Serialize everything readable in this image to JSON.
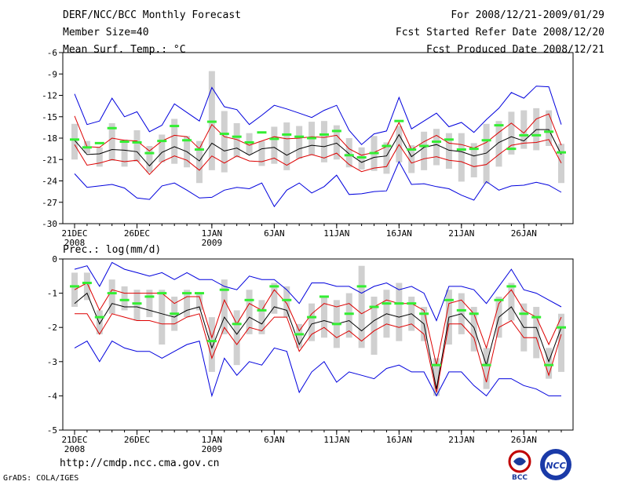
{
  "header": {
    "title": "DERF/NCC/BCC Monthly Forecast",
    "member": "Member Size=40",
    "var1": "Mean Surf. Temp.: °C",
    "period": "For 2008/12/21-2009/01/29",
    "refer": "Fcst Started Refer Date 2008/12/20",
    "produced": "Fcst Produced Date 2008/12/21"
  },
  "footer": {
    "url": "http://cmdp.ncc.cma.gov.cn",
    "credit": "GrADS: COLA/IGES",
    "logo_bcc": "BCC",
    "logo_ncc": "NCC"
  },
  "colors": {
    "envelope": "#0000dd",
    "quartile": "#dd0000",
    "mean": "#000000",
    "box": "#d0d0d0",
    "marker": "#33ee33"
  },
  "chart_data": [
    {
      "type": "line",
      "title": "Mean Surf. Temp.: °C",
      "ylim": [
        -30,
        -6
      ],
      "yticks": [
        -6,
        -9,
        -12,
        -15,
        -18,
        -21,
        -24,
        -27,
        -30
      ],
      "x_labels": [
        {
          "day": 0,
          "l1": "21DEC",
          "l2": "2008"
        },
        {
          "day": 5,
          "l1": "26DEC",
          "l2": ""
        },
        {
          "day": 11,
          "l1": "1JAN",
          "l2": "2009"
        },
        {
          "day": 16,
          "l1": "6JAN",
          "l2": ""
        },
        {
          "day": 21,
          "l1": "11JAN",
          "l2": ""
        },
        {
          "day": 26,
          "l1": "16JAN",
          "l2": ""
        },
        {
          "day": 31,
          "l1": "21JAN",
          "l2": ""
        },
        {
          "day": 36,
          "l1": "26JAN",
          "l2": ""
        }
      ],
      "series": [
        {
          "name": "max",
          "values": [
            -11.8,
            -16.1,
            -15.6,
            -12.4,
            -15.0,
            -14.3,
            -17.1,
            -16.2,
            -13.2,
            -14.4,
            -15.6,
            -10.9,
            -13.6,
            -14.0,
            -16.1,
            -14.8,
            -13.4,
            -13.9,
            -14.5,
            -15.1,
            -14.1,
            -13.4,
            -16.9,
            -18.9,
            -17.4,
            -17.0,
            -12.3,
            -16.7,
            -15.6,
            -14.5,
            -16.4,
            -15.8,
            -17.2,
            -15.4,
            -13.8,
            -11.6,
            -12.4,
            -10.7,
            -10.8,
            -16.1
          ]
        },
        {
          "name": "q3",
          "values": [
            -14.9,
            -19.2,
            -19.3,
            -18.0,
            -18.3,
            -18.4,
            -19.8,
            -18.4,
            -17.6,
            -17.8,
            -19.5,
            -16.1,
            -17.8,
            -18.2,
            -19.0,
            -18.4,
            -17.8,
            -18.1,
            -18.0,
            -17.8,
            -17.9,
            -17.6,
            -19.5,
            -20.4,
            -20.0,
            -19.2,
            -15.8,
            -19.6,
            -18.5,
            -17.6,
            -18.7,
            -18.9,
            -19.4,
            -18.6,
            -17.2,
            -15.9,
            -17.3,
            -15.3,
            -14.6,
            -19.0
          ]
        },
        {
          "name": "mean",
          "values": [
            -18.3,
            -20.3,
            -20.2,
            -19.6,
            -19.7,
            -19.9,
            -21.9,
            -20.0,
            -19.2,
            -19.9,
            -21.2,
            -18.7,
            -19.8,
            -19.4,
            -20.4,
            -19.5,
            -19.3,
            -20.4,
            -19.5,
            -19.0,
            -19.2,
            -18.7,
            -20.2,
            -21.4,
            -20.7,
            -20.5,
            -17.5,
            -20.6,
            -19.3,
            -18.9,
            -19.7,
            -19.9,
            -20.5,
            -20.1,
            -18.6,
            -17.8,
            -18.4,
            -16.8,
            -16.8,
            -20.3
          ]
        },
        {
          "name": "q1",
          "values": [
            -18.9,
            -21.8,
            -21.5,
            -21.0,
            -21.3,
            -21.1,
            -23.1,
            -21.3,
            -20.5,
            -21.1,
            -22.5,
            -20.5,
            -21.5,
            -20.5,
            -21.2,
            -21.3,
            -20.8,
            -21.8,
            -20.8,
            -20.3,
            -20.8,
            -20.1,
            -21.7,
            -22.7,
            -22.2,
            -22.0,
            -18.9,
            -21.5,
            -20.9,
            -20.6,
            -21.1,
            -21.3,
            -22.0,
            -21.7,
            -20.3,
            -19.0,
            -18.7,
            -18.6,
            -18.2,
            -21.5
          ]
        },
        {
          "name": "min",
          "values": [
            -23.0,
            -24.9,
            -24.7,
            -24.5,
            -25.0,
            -26.4,
            -26.6,
            -24.7,
            -24.3,
            -25.3,
            -26.4,
            -26.3,
            -25.3,
            -24.9,
            -25.1,
            -24.3,
            -27.6,
            -25.3,
            -24.3,
            -25.7,
            -24.8,
            -23.2,
            -25.9,
            -25.8,
            -25.5,
            -25.4,
            -21.3,
            -24.5,
            -24.4,
            -24.8,
            -25.1,
            -26.0,
            -26.7,
            -24.1,
            -25.3,
            -24.7,
            -24.6,
            -24.2,
            -24.6,
            -25.6
          ]
        },
        {
          "name": "box_top",
          "values": [
            -16.0,
            -18.4,
            -19.3,
            -15.9,
            -18.2,
            -16.9,
            -19.1,
            -17.5,
            -15.3,
            -17.7,
            -18.4,
            -8.6,
            -14.2,
            -15.9,
            -17.3,
            -18.4,
            -16.4,
            -15.8,
            -16.3,
            -15.7,
            -15.6,
            -16.2,
            -18.0,
            -19.3,
            -17.7,
            -18.6,
            -16.3,
            -19.0,
            -17.1,
            -16.7,
            -17.3,
            -17.3,
            -18.7,
            -16.0,
            -15.6,
            -14.3,
            -14.1,
            -13.8,
            -14.1,
            -18.8
          ]
        },
        {
          "name": "box_bottom",
          "values": [
            -21.0,
            -20.1,
            -22.0,
            -21.2,
            -22.0,
            -21.3,
            -22.8,
            -21.4,
            -21.6,
            -22.1,
            -24.3,
            -22.5,
            -22.8,
            -20.7,
            -20.3,
            -21.9,
            -21.6,
            -22.5,
            -20.9,
            -20.4,
            -21.4,
            -21.0,
            -22.1,
            -22.4,
            -22.6,
            -23.0,
            -21.4,
            -22.9,
            -22.5,
            -21.8,
            -22.3,
            -24.1,
            -23.5,
            -24.4,
            -22.0,
            -20.3,
            -19.5,
            -19.7,
            -19.1,
            -24.3
          ]
        },
        {
          "name": "marker",
          "values": [
            -18.2,
            -19.3,
            -18.7,
            -16.6,
            -18.5,
            -18.6,
            -20.1,
            -18.4,
            -16.3,
            -18.3,
            -19.6,
            -15.7,
            -17.4,
            -17.8,
            -18.6,
            -17.2,
            -18.1,
            -17.5,
            -17.8,
            -18.0,
            -17.5,
            -17.0,
            -20.4,
            -20.7,
            -20.1,
            -19.1,
            -15.6,
            -19.6,
            -19.1,
            -18.5,
            -18.2,
            -19.6,
            -19.5,
            -18.3,
            -16.2,
            -19.5,
            -17.6,
            -17.6,
            -17.1,
            -20.0
          ]
        }
      ]
    },
    {
      "type": "line",
      "title": "Prec.: log(mm/d)",
      "ylim": [
        -5,
        0
      ],
      "yticks": [
        0,
        -1,
        -2,
        -3,
        -4,
        -5
      ],
      "x_labels": [
        {
          "day": 0,
          "l1": "21DEC",
          "l2": "2008"
        },
        {
          "day": 5,
          "l1": "26DEC",
          "l2": ""
        },
        {
          "day": 11,
          "l1": "1JAN",
          "l2": "2009"
        },
        {
          "day": 16,
          "l1": "6JAN",
          "l2": ""
        },
        {
          "day": 21,
          "l1": "11JAN",
          "l2": ""
        },
        {
          "day": 26,
          "l1": "16JAN",
          "l2": ""
        },
        {
          "day": 31,
          "l1": "21JAN",
          "l2": ""
        },
        {
          "day": 36,
          "l1": "26JAN",
          "l2": ""
        }
      ],
      "series": [
        {
          "name": "max",
          "values": [
            -0.3,
            -0.2,
            -0.8,
            -0.1,
            -0.3,
            -0.4,
            -0.5,
            -0.4,
            -0.6,
            -0.4,
            -0.6,
            -0.6,
            -0.8,
            -0.9,
            -0.5,
            -0.6,
            -0.6,
            -0.9,
            -1.3,
            -0.7,
            -0.7,
            -0.8,
            -0.8,
            -1.0,
            -0.8,
            -0.7,
            -0.9,
            -0.8,
            -1.0,
            -1.8,
            -0.8,
            -0.8,
            -0.9,
            -1.3,
            -0.8,
            -0.3,
            -0.9,
            -1.0,
            -1.2,
            -1.4
          ]
        },
        {
          "name": "q3",
          "values": [
            -0.9,
            -0.7,
            -1.5,
            -0.9,
            -1.0,
            -1.0,
            -1.0,
            -1.0,
            -1.3,
            -1.1,
            -1.1,
            -2.3,
            -1.2,
            -1.9,
            -1.3,
            -1.5,
            -0.9,
            -1.3,
            -2.1,
            -1.6,
            -1.3,
            -1.4,
            -1.3,
            -1.6,
            -1.4,
            -1.2,
            -1.3,
            -1.3,
            -1.5,
            -3.1,
            -1.3,
            -1.2,
            -1.6,
            -2.6,
            -1.3,
            -0.9,
            -1.5,
            -1.7,
            -2.5,
            -1.7
          ]
        },
        {
          "name": "mean",
          "values": [
            -1.3,
            -1.0,
            -1.9,
            -1.3,
            -1.4,
            -1.4,
            -1.5,
            -1.6,
            -1.7,
            -1.5,
            -1.4,
            -2.6,
            -1.7,
            -2.2,
            -1.7,
            -1.9,
            -1.4,
            -1.5,
            -2.5,
            -1.9,
            -1.8,
            -1.9,
            -1.8,
            -2.1,
            -1.8,
            -1.6,
            -1.7,
            -1.6,
            -1.9,
            -3.8,
            -1.7,
            -1.6,
            -2.0,
            -3.1,
            -1.7,
            -1.4,
            -2.0,
            -2.0,
            -3.0,
            -2.0
          ]
        },
        {
          "name": "q1",
          "values": [
            -1.6,
            -1.6,
            -2.2,
            -1.6,
            -1.7,
            -1.8,
            -1.8,
            -1.9,
            -1.9,
            -1.7,
            -1.6,
            -2.9,
            -2.0,
            -2.5,
            -2.0,
            -2.1,
            -1.7,
            -1.7,
            -2.7,
            -2.2,
            -2.0,
            -2.3,
            -2.1,
            -2.4,
            -2.1,
            -1.9,
            -2.0,
            -1.9,
            -2.2,
            -3.9,
            -1.9,
            -1.9,
            -2.3,
            -3.6,
            -2.0,
            -1.8,
            -2.3,
            -2.3,
            -3.4,
            -2.2
          ]
        },
        {
          "name": "min",
          "values": [
            -2.6,
            -2.4,
            -3.0,
            -2.4,
            -2.6,
            -2.7,
            -2.7,
            -2.9,
            -2.7,
            -2.5,
            -2.4,
            -4.0,
            -2.9,
            -3.4,
            -3.0,
            -3.1,
            -2.6,
            -2.7,
            -3.9,
            -3.3,
            -3.0,
            -3.6,
            -3.3,
            -3.4,
            -3.5,
            -3.2,
            -3.1,
            -3.3,
            -3.3,
            -4.0,
            -3.3,
            -3.3,
            -3.7,
            -4.0,
            -3.5,
            -3.5,
            -3.7,
            -3.8,
            -4.0,
            -4.0
          ]
        },
        {
          "name": "box_top",
          "values": [
            -0.4,
            -0.4,
            -1.5,
            -0.6,
            -0.8,
            -0.9,
            -0.9,
            -0.9,
            -1.1,
            -0.9,
            -1.0,
            -1.7,
            -0.6,
            -1.5,
            -0.9,
            -1.2,
            -0.7,
            -0.8,
            -1.9,
            -1.3,
            -1.1,
            -1.2,
            -1.0,
            -0.2,
            -1.1,
            -0.9,
            -0.7,
            -1.1,
            -1.4,
            -2.9,
            -0.9,
            -1.0,
            -1.4,
            -2.6,
            -1.1,
            -0.7,
            -1.3,
            -1.4,
            -2.6,
            -1.6
          ]
        },
        {
          "name": "box_bottom",
          "values": [
            -1.4,
            -1.2,
            -2.2,
            -1.6,
            -1.5,
            -1.8,
            -1.7,
            -2.5,
            -2.1,
            -1.7,
            -1.5,
            -3.3,
            -2.2,
            -3.1,
            -2.2,
            -2.2,
            -1.6,
            -1.7,
            -2.6,
            -2.4,
            -2.3,
            -2.6,
            -2.3,
            -2.6,
            -2.8,
            -2.3,
            -2.4,
            -2.1,
            -2.4,
            -4.0,
            -2.5,
            -2.2,
            -2.7,
            -3.8,
            -2.3,
            -1.8,
            -2.7,
            -2.9,
            -3.5,
            -3.3
          ]
        },
        {
          "name": "marker",
          "values": [
            -0.8,
            -0.7,
            -1.7,
            -1.0,
            -1.2,
            -1.3,
            -1.1,
            -1.0,
            -1.6,
            -1.0,
            -1.0,
            -2.4,
            -0.9,
            -1.9,
            -1.2,
            -1.5,
            -0.8,
            -1.2,
            -2.2,
            -1.7,
            -1.1,
            -1.9,
            -1.6,
            -0.8,
            -1.4,
            -1.3,
            -1.3,
            -1.3,
            -1.6,
            -3.1,
            -1.2,
            -1.5,
            -1.6,
            -3.1,
            -1.2,
            -0.8,
            -1.6,
            -1.7,
            -3.1,
            -2.0
          ]
        }
      ]
    }
  ]
}
